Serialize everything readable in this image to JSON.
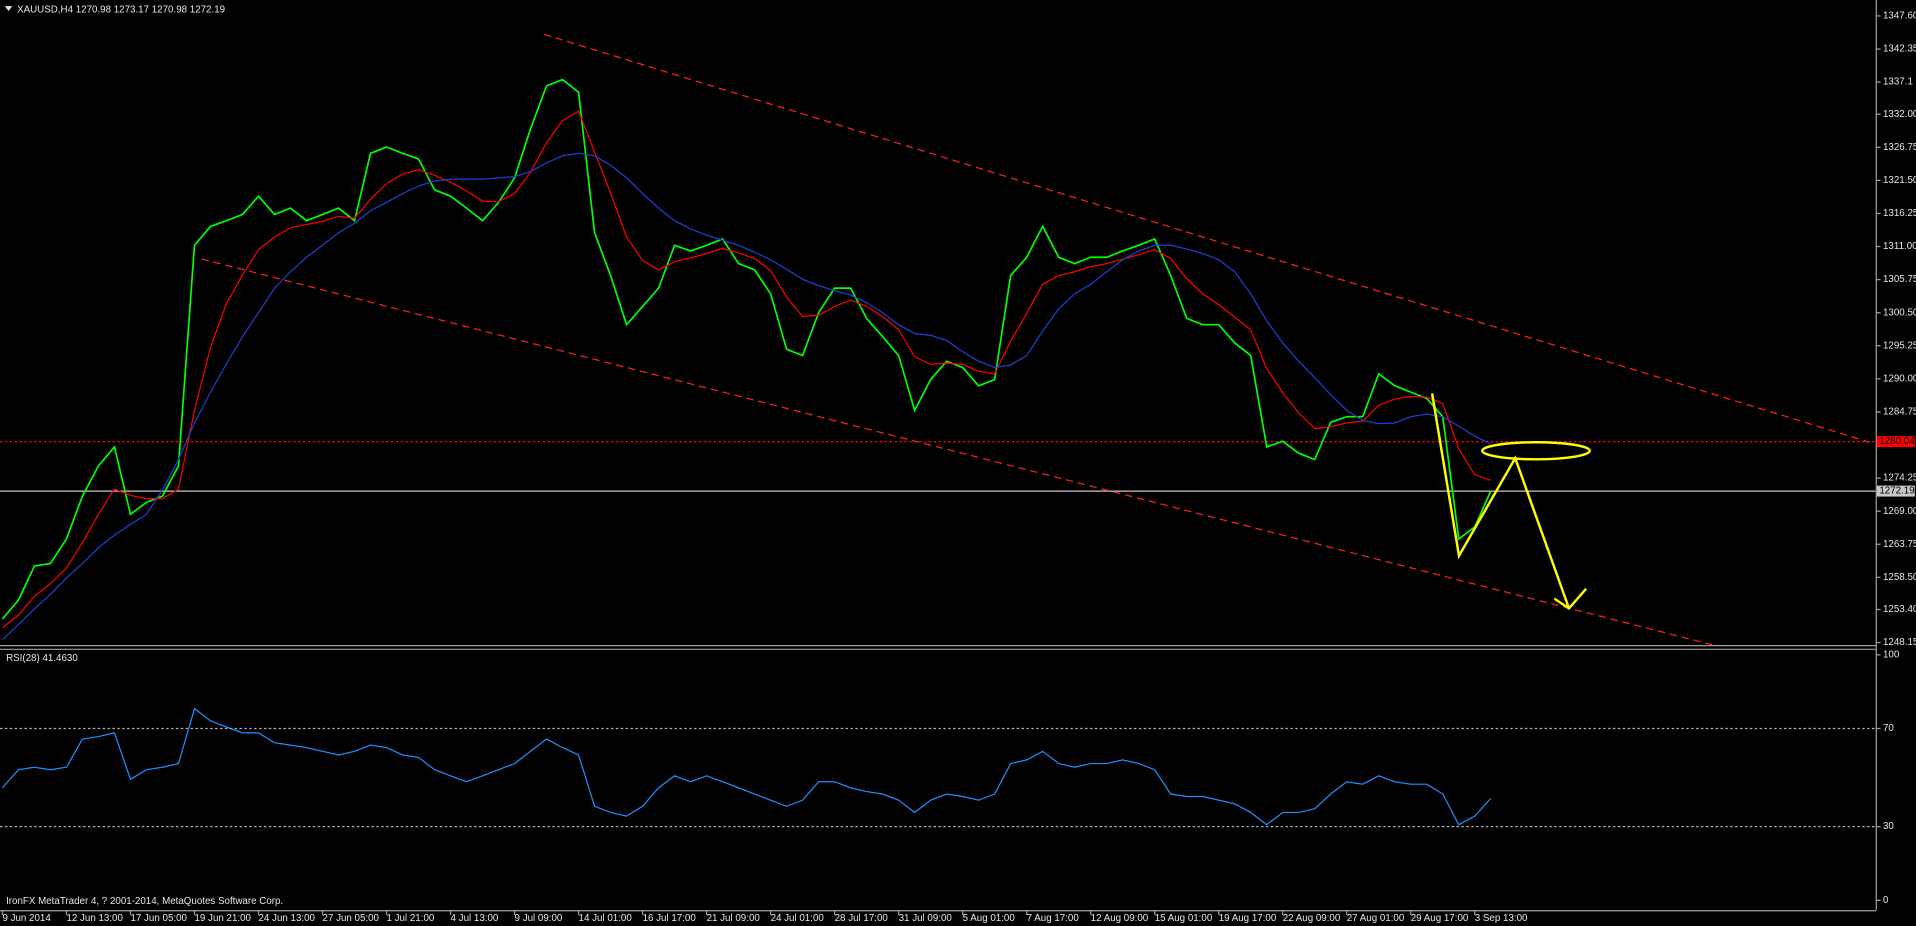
{
  "chart_data": [
    {
      "type": "line",
      "title": "XAUUSD,H4  1270.98 1273.17 1270.98 1272.19",
      "categories": [
        "9 Jun 2014",
        null,
        null,
        null,
        "12 Jun 13:00",
        null,
        null,
        null,
        "17 Jun 05:00",
        null,
        null,
        null,
        "19 Jun 21:00",
        null,
        null,
        null,
        "24 Jun 13:00",
        null,
        null,
        null,
        "27 Jun 05:00",
        null,
        null,
        null,
        "1 Jul 21:00",
        null,
        null,
        null,
        "4 Jul 13:00",
        null,
        null,
        null,
        "9 Jul 09:00",
        null,
        null,
        null,
        "14 Jul 01:00",
        null,
        null,
        null,
        "16 Jul 17:00",
        null,
        null,
        null,
        "21 Jul 09:00",
        null,
        null,
        null,
        "24 Jul 01:00",
        null,
        null,
        null,
        "28 Jul 17:00",
        null,
        null,
        null,
        "31 Jul 09:00",
        null,
        null,
        null,
        "5 Aug 01:00",
        null,
        null,
        null,
        "7 Aug 17:00",
        null,
        null,
        null,
        "12 Aug 09:00",
        null,
        null,
        null,
        "15 Aug 01:00",
        null,
        null,
        null,
        "19 Aug 17:00",
        null,
        null,
        null,
        "22 Aug 09:00",
        null,
        null,
        null,
        "27 Aug 01:00",
        null,
        null,
        null,
        "29 Aug 17:00",
        null,
        null,
        null,
        "3 Sep 13:00",
        null
      ],
      "series": [
        {
          "color": "#00ff00",
          "values": [
            1251.9,
            1254.9,
            1260.3,
            1260.7,
            1264.6,
            1271.4,
            1276.2,
            1279.2,
            1268.5,
            1270.4,
            1271.4,
            1276.2,
            1311.2,
            1314.2,
            1315.1,
            1316.1,
            1319.0,
            1316.1,
            1317.1,
            1315.1,
            1316.1,
            1317.1,
            1315.1,
            1325.8,
            1326.8,
            1325.8,
            1324.9,
            1320.0,
            1319.0,
            1317.1,
            1315.1,
            1318.0,
            1321.9,
            1329.7,
            1336.5,
            1337.5,
            1335.5,
            1313.2,
            1306.4,
            1298.6,
            1301.5,
            1304.4,
            1311.2,
            1310.3,
            1311.2,
            1312.2,
            1308.3,
            1307.3,
            1303.5,
            1294.7,
            1293.7,
            1300.5,
            1304.4,
            1304.4,
            1299.6,
            1296.7,
            1293.7,
            1285.0,
            1289.9,
            1292.8,
            1291.8,
            1288.9,
            1289.9,
            1306.4,
            1309.3,
            1314.2,
            1309.3,
            1308.3,
            1309.3,
            1309.3,
            1310.3,
            1311.2,
            1312.2,
            1306.4,
            1299.6,
            1298.6,
            1298.6,
            1295.7,
            1293.7,
            1279.2,
            1280.1,
            1278.2,
            1277.2,
            1283.1,
            1284.0,
            1284.0,
            1290.8,
            1288.9,
            1287.9,
            1286.9,
            1284.0,
            1264.6,
            1266.5,
            1272.19
          ]
        },
        {
          "color": "#ff0000",
          "values": [
            1250.5,
            1252.5,
            1255.5,
            1257.5,
            1260.0,
            1264.0,
            1268.5,
            1272.5,
            1271.5,
            1271.0,
            1271.0,
            1272.5,
            1285.0,
            1295.0,
            1302.0,
            1306.5,
            1310.5,
            1312.5,
            1314.0,
            1314.5,
            1315.0,
            1315.8,
            1315.5,
            1318.5,
            1321.0,
            1322.5,
            1323.2,
            1322.3,
            1321.2,
            1319.8,
            1318.2,
            1318.1,
            1319.4,
            1322.8,
            1327.5,
            1331.0,
            1332.5,
            1326.0,
            1319.5,
            1312.5,
            1308.8,
            1307.3,
            1308.6,
            1309.2,
            1309.9,
            1310.7,
            1310.0,
            1309.1,
            1307.2,
            1303.0,
            1299.9,
            1300.1,
            1301.5,
            1302.5,
            1301.5,
            1299.9,
            1297.8,
            1293.5,
            1292.3,
            1292.5,
            1292.3,
            1291.2,
            1290.8,
            1296.0,
            1300.4,
            1305.0,
            1306.4,
            1307.0,
            1307.8,
            1308.3,
            1309.0,
            1309.7,
            1310.5,
            1309.1,
            1305.9,
            1303.5,
            1301.8,
            1299.8,
            1297.8,
            1291.6,
            1287.8,
            1284.6,
            1282.1,
            1282.4,
            1283.0,
            1283.3,
            1285.8,
            1286.8,
            1287.2,
            1287.1,
            1286.1,
            1278.9,
            1274.8,
            1273.9
          ]
        },
        {
          "color": "#1f3fd6",
          "values": [
            1248.6,
            1251.0,
            1253.5,
            1255.8,
            1258.4,
            1260.7,
            1263.2,
            1265.2,
            1266.9,
            1268.5,
            1272.4,
            1277.2,
            1283.0,
            1287.9,
            1292.4,
            1296.7,
            1300.5,
            1304.4,
            1307.0,
            1309.3,
            1311.2,
            1313.2,
            1314.7,
            1316.7,
            1318.0,
            1319.4,
            1320.6,
            1321.4,
            1321.7,
            1321.7,
            1321.7,
            1321.9,
            1322.1,
            1322.9,
            1324.3,
            1325.4,
            1325.8,
            1325.4,
            1323.9,
            1321.9,
            1319.4,
            1317.1,
            1315.1,
            1313.8,
            1312.8,
            1312.0,
            1311.2,
            1310.1,
            1308.9,
            1307.4,
            1305.8,
            1304.8,
            1304.0,
            1303.3,
            1302.1,
            1300.5,
            1298.6,
            1297.2,
            1296.9,
            1296.1,
            1294.3,
            1292.8,
            1291.8,
            1292.2,
            1293.7,
            1297.6,
            1301.1,
            1303.5,
            1305.0,
            1307.0,
            1308.9,
            1310.3,
            1311.2,
            1311.2,
            1310.6,
            1309.9,
            1308.9,
            1307.0,
            1303.5,
            1299.2,
            1295.7,
            1292.8,
            1290.2,
            1287.5,
            1285.0,
            1283.4,
            1282.9,
            1283.0,
            1284.0,
            1284.4,
            1284.0,
            1282.5,
            1280.9,
            1279.7
          ]
        }
      ],
      "ylim": [
        1247.76,
        1350.13
      ],
      "yticks": [
        {
          "value": 1347.6,
          "label": "1347.60"
        },
        1342.35,
        1337.1,
        {
          "value": 1332,
          "label": "1332.00"
        },
        1326.75,
        {
          "value": 1321.5,
          "label": "1321.50"
        },
        1316.25,
        {
          "value": 1311,
          "label": "1311.00"
        },
        1305.75,
        {
          "value": 1300.5,
          "label": "1300.50"
        },
        1295.25,
        {
          "value": 1290,
          "label": "1290.00"
        },
        1284.75,
        1274.25,
        {
          "value": 1269,
          "label": "1269.00"
        },
        1263.75,
        {
          "value": 1258.5,
          "label": "1258.50"
        },
        {
          "value": 1253.4,
          "label": "1253.40"
        },
        1248.15
      ],
      "hlines": [
        {
          "value": 1280.04,
          "color": "#ff0000",
          "style": "dotted"
        },
        {
          "value": 1272.19,
          "color": "#c8c8c8",
          "style": "solid"
        }
      ]
    },
    {
      "type": "line",
      "title": "RSI(28) 41.4630",
      "series": [
        {
          "color": "#1e90ff",
          "values": [
            45.8,
            53.2,
            54.2,
            53.2,
            54.2,
            65.7,
            66.7,
            68.2,
            49.3,
            53.2,
            54.2,
            55.7,
            78.1,
            73.1,
            70.6,
            68.2,
            68.2,
            64.2,
            63.2,
            62.2,
            60.7,
            59.2,
            60.7,
            63.2,
            62.2,
            59.2,
            58.2,
            53.2,
            50.7,
            48.3,
            50.7,
            53.2,
            55.7,
            60.7,
            65.7,
            62.2,
            59.2,
            38.3,
            35.8,
            34.3,
            38.3,
            45.8,
            50.7,
            48.3,
            50.7,
            48.3,
            45.8,
            43.3,
            40.8,
            38.3,
            40.8,
            48.3,
            48.3,
            45.8,
            44.3,
            43.3,
            40.8,
            35.8,
            40.8,
            43.3,
            42.3,
            40.8,
            43.3,
            55.7,
            57.2,
            60.7,
            55.7,
            54.2,
            55.7,
            55.7,
            57.2,
            55.7,
            53.2,
            43.3,
            42.3,
            42.3,
            40.8,
            39.3,
            35.8,
            30.8,
            35.8,
            35.8,
            37.3,
            43.3,
            48.3,
            47.3,
            50.7,
            48.3,
            47.3,
            47.3,
            43.3,
            30.8,
            34.3,
            41.46
          ]
        }
      ],
      "ylim": [
        -4,
        102.5
      ],
      "yticks": [
        100,
        70,
        30,
        0
      ]
    }
  ],
  "footer": "IronFX MetaTrader 4, ? 2001-2014, MetaQuotes Software Corp."
}
